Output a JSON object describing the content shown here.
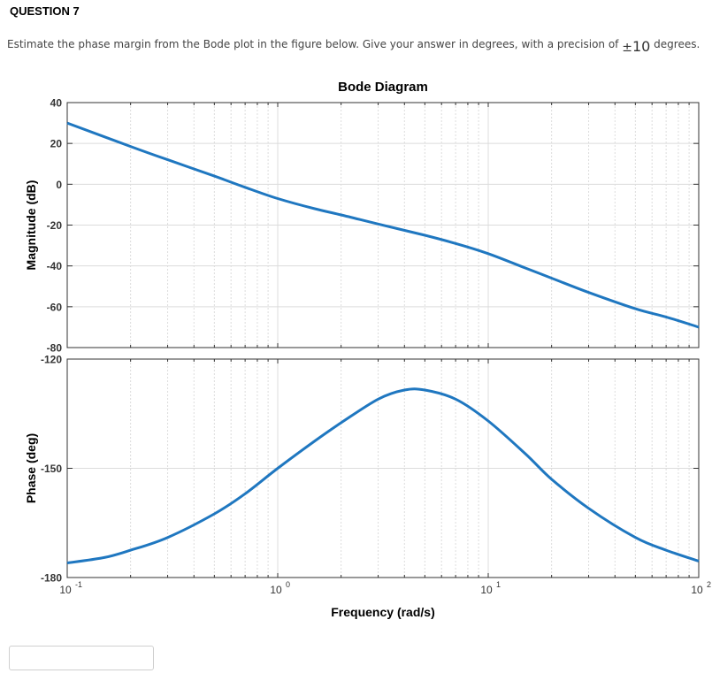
{
  "question": {
    "title": "QUESTION 7",
    "text": "Estimate the phase margin from the Bode plot in the figure below. Give your answer in degrees, with a precision of",
    "pm_symbol": "±",
    "precision_value": "10",
    "unit": "degrees."
  },
  "answer_input": {
    "value": ""
  },
  "chart_data": {
    "type": "line",
    "title": "Bode Diagram",
    "xlabel": "Frequency  (rad/s)",
    "xscale": "log",
    "xlim": [
      0.1,
      100
    ],
    "x_ticks": [
      {
        "value": 0.1,
        "base": "10",
        "exp": "-1"
      },
      {
        "value": 1,
        "base": "10",
        "exp": "0"
      },
      {
        "value": 10,
        "base": "10",
        "exp": "1"
      },
      {
        "value": 100,
        "base": "10",
        "exp": "2"
      }
    ],
    "grid": true,
    "line_color": "#1f77c0",
    "panels": [
      {
        "name": "magnitude",
        "ylabel": "Magnitude (dB)",
        "ylim": [
          -80,
          40
        ],
        "yticks": [
          40,
          20,
          0,
          -20,
          -40,
          -60,
          -80
        ],
        "x": [
          0.1,
          0.2,
          0.3,
          0.5,
          0.7,
          1,
          1.5,
          2,
          3,
          5,
          7,
          10,
          15,
          20,
          30,
          50,
          70,
          100
        ],
        "y": [
          30,
          18.5,
          12,
          4,
          -1.5,
          -7,
          -12,
          -15,
          -19.5,
          -25,
          -29,
          -34,
          -41,
          -46,
          -53,
          -61,
          -65,
          -70
        ]
      },
      {
        "name": "phase",
        "ylabel": "Phase (deg)",
        "ylim": [
          -180,
          -120
        ],
        "yticks": [
          -120,
          -150,
          -180
        ],
        "x": [
          0.1,
          0.15,
          0.2,
          0.3,
          0.5,
          0.7,
          1,
          1.5,
          2,
          3,
          4,
          5,
          7,
          10,
          15,
          20,
          30,
          50,
          70,
          100
        ],
        "y": [
          -176,
          -174.5,
          -172.5,
          -169,
          -162.5,
          -157,
          -150,
          -142.5,
          -137.5,
          -131,
          -128.5,
          -128.5,
          -131,
          -137,
          -146,
          -153,
          -161,
          -169,
          -172.5,
          -175.5
        ]
      }
    ]
  }
}
